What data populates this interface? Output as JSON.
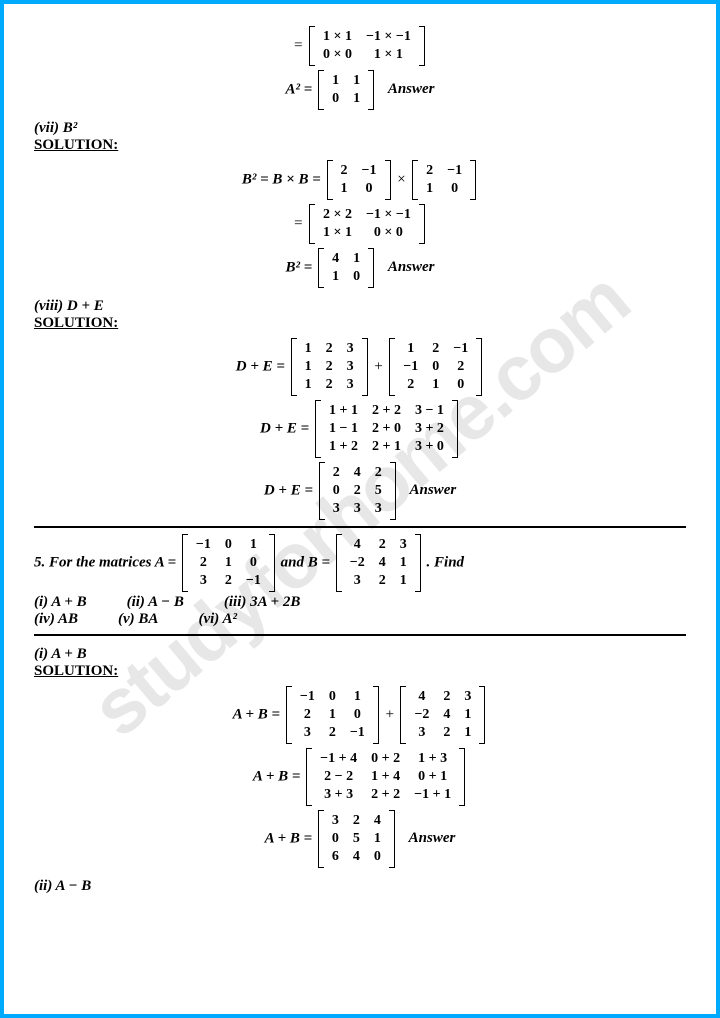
{
  "watermark": "studyforhome.com",
  "s_vii": {
    "label": "(vii) B²",
    "solution": "SOLUTION:",
    "step1_m1": [
      [
        "1 × 1",
        "−1 × −1"
      ],
      [
        "0 × 0",
        "1 × 1"
      ]
    ],
    "a2_label": "A² =",
    "a2_m": [
      [
        "1",
        "1"
      ],
      [
        "0",
        "1"
      ]
    ],
    "ans": "Answer",
    "b2_lhs": "B² = B × B =",
    "b2_m1": [
      [
        "2",
        "−1"
      ],
      [
        "1",
        "0"
      ]
    ],
    "b2_m2": [
      [
        "2",
        "−1"
      ],
      [
        "1",
        "0"
      ]
    ],
    "b2_step_m": [
      [
        "2 × 2",
        "−1 × −1"
      ],
      [
        "1 × 1",
        "0 × 0"
      ]
    ],
    "b2_res_lhs": "B² =",
    "b2_res_m": [
      [
        "4",
        "1"
      ],
      [
        "1",
        "0"
      ]
    ]
  },
  "s_viii": {
    "label": "(viii) D + E",
    "solution": "SOLUTION:",
    "lhs": "D + E =",
    "m1": [
      [
        "1",
        "2",
        "3"
      ],
      [
        "1",
        "2",
        "3"
      ],
      [
        "1",
        "2",
        "3"
      ]
    ],
    "m2": [
      [
        "1",
        "2",
        "−1"
      ],
      [
        "−1",
        "0",
        "2"
      ],
      [
        "2",
        "1",
        "0"
      ]
    ],
    "step_m": [
      [
        "1 + 1",
        "2 + 2",
        "3 − 1"
      ],
      [
        "1 − 1",
        "2 + 0",
        "3 + 2"
      ],
      [
        "1 + 2",
        "2 + 1",
        "3 + 0"
      ]
    ],
    "res_m": [
      [
        "2",
        "4",
        "2"
      ],
      [
        "0",
        "2",
        "5"
      ],
      [
        "3",
        "3",
        "3"
      ]
    ],
    "ans": "Answer"
  },
  "q5": {
    "text_pre": "5. For the matrices A =",
    "mA": [
      [
        "−1",
        "0",
        "1"
      ],
      [
        "2",
        "1",
        "0"
      ],
      [
        "3",
        "2",
        "−1"
      ]
    ],
    "text_mid": " and B =",
    "mB": [
      [
        "4",
        "2",
        "3"
      ],
      [
        "−2",
        "4",
        "1"
      ],
      [
        "3",
        "2",
        "1"
      ]
    ],
    "text_post": ". Find",
    "opts": [
      "(i) A + B",
      "(ii) A − B",
      "(iii) 3A + 2B",
      "(iv) AB",
      "(v) BA",
      "(vi) A²"
    ]
  },
  "s5i": {
    "label": "(i) A + B",
    "solution": "SOLUTION:",
    "lhs": "A + B =",
    "m1": [
      [
        "−1",
        "0",
        "1"
      ],
      [
        "2",
        "1",
        "0"
      ],
      [
        "3",
        "2",
        "−1"
      ]
    ],
    "m2": [
      [
        "4",
        "2",
        "3"
      ],
      [
        "−2",
        "4",
        "1"
      ],
      [
        "3",
        "2",
        "1"
      ]
    ],
    "step_m": [
      [
        "−1 + 4",
        "0 + 2",
        "1 + 3"
      ],
      [
        "2 − 2",
        "1 + 4",
        "0 + 1"
      ],
      [
        "3 + 3",
        "2 + 2",
        "−1 + 1"
      ]
    ],
    "res_m": [
      [
        "3",
        "2",
        "4"
      ],
      [
        "0",
        "5",
        "1"
      ],
      [
        "6",
        "4",
        "0"
      ]
    ],
    "ans": "Answer"
  },
  "s5ii": {
    "label": "(ii) A − B"
  }
}
